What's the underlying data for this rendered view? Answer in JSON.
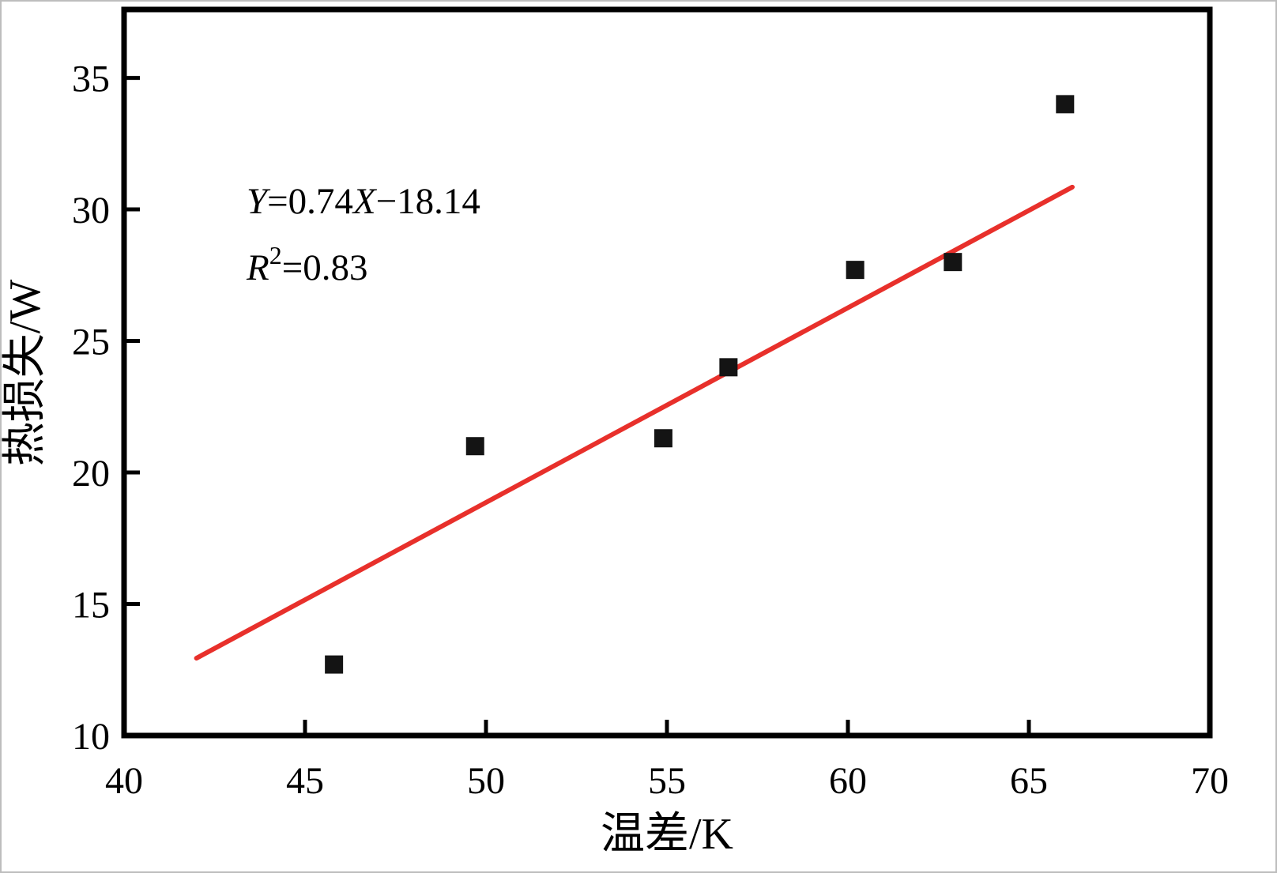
{
  "figure": {
    "background": "#ffffff",
    "frame_color": "#000000"
  },
  "chart_data": {
    "type": "scatter",
    "title": "",
    "xlabel": "温差/K",
    "ylabel": "热损失/W",
    "xlim": [
      40,
      70
    ],
    "ylim": [
      10,
      37.6
    ],
    "x_ticks": [
      40,
      45,
      50,
      55,
      60,
      65,
      70
    ],
    "y_ticks": [
      10,
      15,
      20,
      25,
      30,
      35
    ],
    "grid": false,
    "legend": "none",
    "point_color": "#141414",
    "points": [
      {
        "x": 45.8,
        "y": 12.7
      },
      {
        "x": 49.7,
        "y": 21.0
      },
      {
        "x": 54.9,
        "y": 21.3
      },
      {
        "x": 56.7,
        "y": 24.0
      },
      {
        "x": 60.2,
        "y": 27.7
      },
      {
        "x": 62.9,
        "y": 28.0
      },
      {
        "x": 66.0,
        "y": 34.0
      }
    ],
    "fit_line": {
      "slope": 0.74,
      "intercept": -18.14,
      "x_start": 42.0,
      "x_end": 66.2,
      "color": "#e8302b"
    },
    "annotation": {
      "equation_text": "Y=0.74X−18.14",
      "r_squared_text": "R2=0.83",
      "line1_segments": [
        {
          "t": "Y",
          "italic": true
        },
        {
          "t": "=0.74"
        },
        {
          "t": "X",
          "italic": true
        },
        {
          "t": "−18.14"
        }
      ],
      "line2_segments": [
        {
          "t": "R",
          "italic": true
        },
        {
          "t": "2",
          "sup": true
        },
        {
          "t": "=0.83"
        }
      ]
    }
  }
}
